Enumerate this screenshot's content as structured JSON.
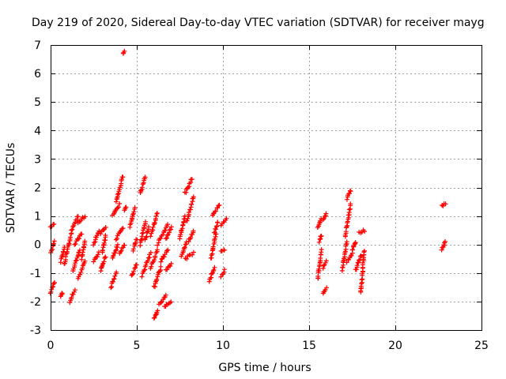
{
  "chart_data": {
    "type": "scatter",
    "title": "Day 219 of 2020, Sidereal Day-to-day VTEC variation (SDTVAR) for receiver mayg",
    "xlabel": "GPS time / hours",
    "ylabel": "SDTVAR / TECUs",
    "xlim": [
      0,
      25
    ],
    "ylim": [
      -3,
      7
    ],
    "x_ticks": [
      "0",
      "5",
      "10",
      "15",
      "20",
      "25"
    ],
    "y_ticks": [
      "-3",
      "-2",
      "-1",
      "0",
      "1",
      "2",
      "3",
      "4",
      "5",
      "6",
      "7"
    ],
    "grid": true,
    "marker": "+",
    "color": "#ff0000",
    "segments": [
      {
        "x": [
          0.0,
          0.2
        ],
        "y": [
          0.6,
          0.7
        ]
      },
      {
        "x": [
          0.0,
          0.2
        ],
        "y": [
          -0.3,
          0.1
        ]
      },
      {
        "x": [
          0.0,
          0.25
        ],
        "y": [
          -1.7,
          -1.3
        ]
      },
      {
        "x": [
          0.6,
          0.8
        ],
        "y": [
          -0.6,
          -0.1
        ]
      },
      {
        "x": [
          0.6,
          0.7
        ],
        "y": [
          -1.8,
          -1.7
        ]
      },
      {
        "x": [
          0.8,
          1.2
        ],
        "y": [
          -0.7,
          0.4
        ]
      },
      {
        "x": [
          1.1,
          1.4
        ],
        "y": [
          -2.0,
          -1.6
        ]
      },
      {
        "x": [
          1.2,
          1.6
        ],
        "y": [
          0.5,
          1.0
        ]
      },
      {
        "x": [
          1.3,
          1.7
        ],
        "y": [
          -0.9,
          -0.2
        ]
      },
      {
        "x": [
          1.4,
          1.8
        ],
        "y": [
          0.0,
          0.4
        ]
      },
      {
        "x": [
          1.6,
          2.0
        ],
        "y": [
          0.8,
          1.0
        ]
      },
      {
        "x": [
          1.6,
          2.0
        ],
        "y": [
          -1.2,
          -0.6
        ]
      },
      {
        "x": [
          1.8,
          2.0
        ],
        "y": [
          -0.5,
          0.1
        ]
      },
      {
        "x": [
          2.5,
          2.8
        ],
        "y": [
          0.0,
          0.5
        ]
      },
      {
        "x": [
          2.5,
          2.8
        ],
        "y": [
          -0.6,
          -0.3
        ]
      },
      {
        "x": [
          2.9,
          3.2
        ],
        "y": [
          0.4,
          0.6
        ]
      },
      {
        "x": [
          2.9,
          3.2
        ],
        "y": [
          -0.9,
          -0.4
        ]
      },
      {
        "x": [
          3.0,
          3.2
        ],
        "y": [
          -0.3,
          0.3
        ]
      },
      {
        "x": [
          3.5,
          3.8
        ],
        "y": [
          -1.5,
          -1.0
        ]
      },
      {
        "x": [
          3.6,
          3.9
        ],
        "y": [
          -0.5,
          0.0
        ]
      },
      {
        "x": [
          3.6,
          4.0
        ],
        "y": [
          1.0,
          1.4
        ]
      },
      {
        "x": [
          3.8,
          4.2
        ],
        "y": [
          1.5,
          2.4
        ]
      },
      {
        "x": [
          3.8,
          4.2
        ],
        "y": [
          0.2,
          0.6
        ]
      },
      {
        "x": [
          4.0,
          4.3
        ],
        "y": [
          -0.3,
          0.0
        ]
      },
      {
        "x": [
          4.2,
          4.3
        ],
        "y": [
          6.7,
          6.75
        ]
      },
      {
        "x": [
          4.3,
          4.4
        ],
        "y": [
          1.2,
          1.3
        ]
      },
      {
        "x": [
          4.6,
          4.9
        ],
        "y": [
          0.6,
          1.3
        ]
      },
      {
        "x": [
          4.7,
          5.0
        ],
        "y": [
          -1.1,
          -0.7
        ]
      },
      {
        "x": [
          4.8,
          5.0
        ],
        "y": [
          -0.2,
          0.2
        ]
      },
      {
        "x": [
          5.2,
          5.5
        ],
        "y": [
          1.8,
          2.4
        ]
      },
      {
        "x": [
          5.2,
          5.5
        ],
        "y": [
          0.0,
          0.8
        ]
      },
      {
        "x": [
          5.3,
          5.8
        ],
        "y": [
          -1.1,
          -0.3
        ]
      },
      {
        "x": [
          5.5,
          5.7
        ],
        "y": [
          0.2,
          0.6
        ]
      },
      {
        "x": [
          5.8,
          6.2
        ],
        "y": [
          0.3,
          1.1
        ]
      },
      {
        "x": [
          5.8,
          6.2
        ],
        "y": [
          -0.8,
          -0.2
        ]
      },
      {
        "x": [
          6.0,
          6.4
        ],
        "y": [
          -1.5,
          -0.8
        ]
      },
      {
        "x": [
          6.0,
          6.2
        ],
        "y": [
          -2.6,
          -2.3
        ]
      },
      {
        "x": [
          6.2,
          6.8
        ],
        "y": [
          0.0,
          0.7
        ]
      },
      {
        "x": [
          6.3,
          6.7
        ],
        "y": [
          -2.1,
          -1.8
        ]
      },
      {
        "x": [
          6.4,
          6.8
        ],
        "y": [
          -0.6,
          -0.2
        ]
      },
      {
        "x": [
          6.6,
          7.0
        ],
        "y": [
          -2.2,
          -2.0
        ]
      },
      {
        "x": [
          6.7,
          7.0
        ],
        "y": [
          -0.9,
          -0.7
        ]
      },
      {
        "x": [
          6.7,
          7.0
        ],
        "y": [
          0.2,
          0.6
        ]
      },
      {
        "x": [
          7.5,
          7.8
        ],
        "y": [
          0.2,
          1.0
        ]
      },
      {
        "x": [
          7.6,
          7.9
        ],
        "y": [
          -0.4,
          0.1
        ]
      },
      {
        "x": [
          7.8,
          8.2
        ],
        "y": [
          1.8,
          2.3
        ]
      },
      {
        "x": [
          7.9,
          8.3
        ],
        "y": [
          0.8,
          1.7
        ]
      },
      {
        "x": [
          7.8,
          8.3
        ],
        "y": [
          -0.5,
          -0.3
        ]
      },
      {
        "x": [
          8.0,
          8.3
        ],
        "y": [
          0.1,
          0.5
        ]
      },
      {
        "x": [
          9.2,
          9.5
        ],
        "y": [
          -1.3,
          -0.8
        ]
      },
      {
        "x": [
          9.3,
          9.6
        ],
        "y": [
          -0.5,
          0.4
        ]
      },
      {
        "x": [
          9.4,
          9.8
        ],
        "y": [
          1.0,
          1.4
        ]
      },
      {
        "x": [
          9.5,
          9.7
        ],
        "y": [
          0.4,
          0.8
        ]
      },
      {
        "x": [
          9.9,
          10.1
        ],
        "y": [
          -1.1,
          -0.9
        ]
      },
      {
        "x": [
          9.9,
          10.1
        ],
        "y": [
          -0.2,
          -0.2
        ]
      },
      {
        "x": [
          9.9,
          10.2
        ],
        "y": [
          0.7,
          0.9
        ]
      },
      {
        "x": [
          15.5,
          15.7
        ],
        "y": [
          0.6,
          0.9
        ]
      },
      {
        "x": [
          15.6,
          15.7
        ],
        "y": [
          0.1,
          0.3
        ]
      },
      {
        "x": [
          15.5,
          15.7
        ],
        "y": [
          -1.2,
          -0.2
        ]
      },
      {
        "x": [
          15.8,
          16.0
        ],
        "y": [
          0.9,
          1.1
        ]
      },
      {
        "x": [
          15.8,
          16.0
        ],
        "y": [
          -0.8,
          -0.6
        ]
      },
      {
        "x": [
          15.8,
          16.0
        ],
        "y": [
          -1.7,
          -1.5
        ]
      },
      {
        "x": [
          16.9,
          17.2
        ],
        "y": [
          -0.9,
          0.1
        ]
      },
      {
        "x": [
          17.1,
          17.4
        ],
        "y": [
          0.3,
          1.4
        ]
      },
      {
        "x": [
          17.2,
          17.4
        ],
        "y": [
          1.6,
          1.9
        ]
      },
      {
        "x": [
          17.2,
          17.5
        ],
        "y": [
          -0.6,
          -0.3
        ]
      },
      {
        "x": [
          17.5,
          17.7
        ],
        "y": [
          -0.2,
          0.1
        ]
      },
      {
        "x": [
          17.7,
          18.0
        ],
        "y": [
          -0.9,
          -0.4
        ]
      },
      {
        "x": [
          17.9,
          18.2
        ],
        "y": [
          0.4,
          0.5
        ]
      },
      {
        "x": [
          18.0,
          18.2
        ],
        "y": [
          -1.7,
          -0.2
        ]
      },
      {
        "x": [
          22.7,
          22.9
        ],
        "y": [
          1.35,
          1.45
        ]
      },
      {
        "x": [
          22.7,
          22.9
        ],
        "y": [
          -0.2,
          0.1
        ]
      }
    ]
  }
}
